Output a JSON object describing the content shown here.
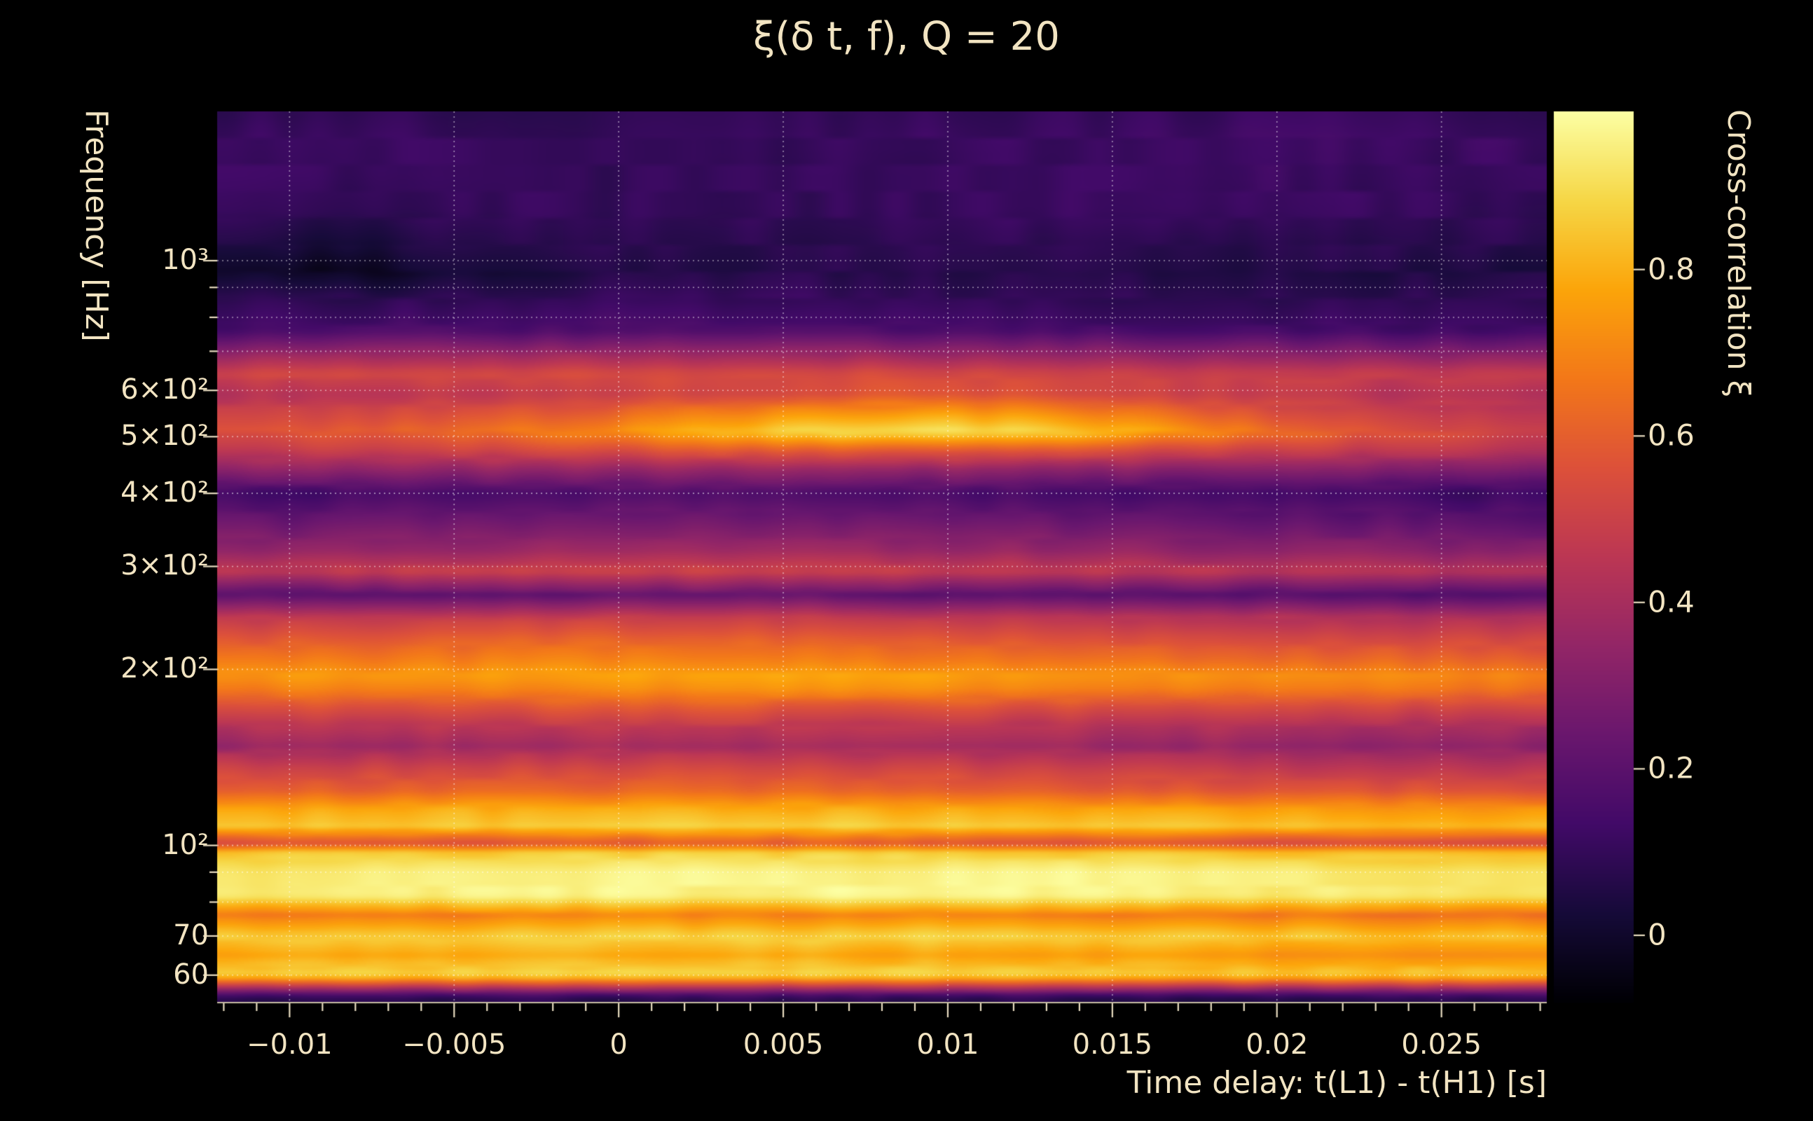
{
  "title": "ξ(δ t, f), Q = 20",
  "colors": {
    "background": "#000000",
    "text": "#f2e4c2",
    "tick": "#e8dcc0",
    "grid": "rgba(255,255,255,0.55)"
  },
  "chart_data": {
    "type": "heatmap",
    "title": "ξ(δ t, f), Q = 20",
    "xlabel": "Time delay: t(L1) - t(H1) [s]",
    "ylabel": "Frequency [Hz]",
    "colorbar_label": "Cross-correlation ξ",
    "x_range": [
      -0.0122,
      0.0282
    ],
    "y_range_hz": [
      54,
      1800
    ],
    "y_scale": "log",
    "color_range": [
      -0.08,
      0.99
    ],
    "x_ticks": [
      -0.01,
      -0.005,
      0,
      0.005,
      0.01,
      0.015,
      0.02,
      0.025
    ],
    "x_tick_labels": [
      "−0.01",
      "−0.005",
      "0",
      "0.005",
      "0.01",
      "0.015",
      "0.02",
      "0.025"
    ],
    "x_minor_tick_step": 0.001,
    "y_ticks_hz": [
      1000,
      600,
      500,
      400,
      300,
      200,
      100,
      70,
      60
    ],
    "y_tick_labels": [
      "10³",
      "6×10²",
      "5×10²",
      "4×10²",
      "3×10²",
      "2×10²",
      "10²",
      "70",
      "60"
    ],
    "y_minor_ticks_hz": [
      80,
      90,
      700,
      800,
      900
    ],
    "grid_lines_hz": [
      60,
      70,
      80,
      90,
      100,
      200,
      300,
      400,
      500,
      600,
      700,
      800,
      900,
      1000
    ],
    "grid_on": true,
    "legend_position": "colorbar-right",
    "colorbar_ticks": [
      0.8,
      0.6,
      0.4,
      0.2,
      0
    ],
    "colorbar_tick_labels": [
      "0.8",
      "0.6",
      "0.4",
      "0.2",
      "0"
    ],
    "colormap": "inferno",
    "colormap_stops": [
      [
        0.0,
        "#000004"
      ],
      [
        0.1,
        "#160b39"
      ],
      [
        0.2,
        "#420a68"
      ],
      [
        0.3,
        "#6a176e"
      ],
      [
        0.4,
        "#932667"
      ],
      [
        0.5,
        "#bc3754"
      ],
      [
        0.6,
        "#dd513a"
      ],
      [
        0.7,
        "#f37819"
      ],
      [
        0.8,
        "#fca50a"
      ],
      [
        0.9,
        "#f6d746"
      ],
      [
        1.0,
        "#fcffa4"
      ]
    ],
    "time_samples": [
      -0.0122,
      -0.0085,
      -0.0049,
      -0.0012,
      0.0025,
      0.0061,
      0.0098,
      0.0135,
      0.0171,
      0.0208,
      0.0245,
      0.0282
    ],
    "rows": [
      {
        "f": 55,
        "values": [
          0.07,
          0.07,
          0.08,
          0.08,
          0.08,
          0.08,
          0.08,
          0.08,
          0.07,
          0.07,
          0.07,
          0.07
        ]
      },
      {
        "f": 60,
        "values": [
          0.88,
          0.88,
          0.88,
          0.89,
          0.89,
          0.89,
          0.88,
          0.87,
          0.86,
          0.86,
          0.85,
          0.84
        ]
      },
      {
        "f": 65,
        "values": [
          0.77,
          0.77,
          0.78,
          0.78,
          0.78,
          0.78,
          0.77,
          0.76,
          0.75,
          0.74,
          0.73,
          0.72
        ]
      },
      {
        "f": 70,
        "values": [
          0.86,
          0.86,
          0.87,
          0.87,
          0.88,
          0.88,
          0.88,
          0.87,
          0.86,
          0.85,
          0.84,
          0.83
        ]
      },
      {
        "f": 76,
        "values": [
          0.67,
          0.68,
          0.69,
          0.7,
          0.7,
          0.7,
          0.7,
          0.69,
          0.68,
          0.67,
          0.66,
          0.64
        ]
      },
      {
        "f": 82,
        "values": [
          0.94,
          0.95,
          0.95,
          0.96,
          0.96,
          0.97,
          0.97,
          0.96,
          0.95,
          0.94,
          0.93,
          0.92
        ]
      },
      {
        "f": 90,
        "values": [
          0.93,
          0.94,
          0.95,
          0.95,
          0.96,
          0.96,
          0.96,
          0.96,
          0.95,
          0.94,
          0.93,
          0.92
        ]
      },
      {
        "f": 97,
        "values": [
          0.85,
          0.86,
          0.86,
          0.87,
          0.87,
          0.87,
          0.87,
          0.86,
          0.85,
          0.84,
          0.83,
          0.82
        ]
      },
      {
        "f": 101,
        "values": [
          0.54,
          0.55,
          0.56,
          0.57,
          0.58,
          0.58,
          0.57,
          0.56,
          0.55,
          0.54,
          0.52,
          0.51
        ]
      },
      {
        "f": 108,
        "values": [
          0.84,
          0.85,
          0.85,
          0.86,
          0.87,
          0.87,
          0.86,
          0.85,
          0.84,
          0.83,
          0.82,
          0.81
        ]
      },
      {
        "f": 115,
        "values": [
          0.78,
          0.79,
          0.8,
          0.8,
          0.8,
          0.8,
          0.79,
          0.78,
          0.77,
          0.76,
          0.75,
          0.74
        ]
      },
      {
        "f": 124,
        "values": [
          0.6,
          0.61,
          0.62,
          0.63,
          0.63,
          0.62,
          0.61,
          0.6,
          0.59,
          0.58,
          0.57,
          0.56
        ]
      },
      {
        "f": 135,
        "values": [
          0.5,
          0.51,
          0.52,
          0.53,
          0.53,
          0.52,
          0.51,
          0.5,
          0.48,
          0.47,
          0.46,
          0.45
        ]
      },
      {
        "f": 148,
        "values": [
          0.36,
          0.37,
          0.38,
          0.4,
          0.4,
          0.39,
          0.38,
          0.37,
          0.36,
          0.35,
          0.34,
          0.33
        ]
      },
      {
        "f": 160,
        "values": [
          0.44,
          0.45,
          0.46,
          0.47,
          0.47,
          0.46,
          0.45,
          0.44,
          0.43,
          0.42,
          0.41,
          0.4
        ]
      },
      {
        "f": 172,
        "values": [
          0.55,
          0.56,
          0.57,
          0.58,
          0.58,
          0.57,
          0.56,
          0.55,
          0.54,
          0.53,
          0.52,
          0.51
        ]
      },
      {
        "f": 185,
        "values": [
          0.68,
          0.69,
          0.7,
          0.71,
          0.72,
          0.72,
          0.71,
          0.7,
          0.69,
          0.67,
          0.66,
          0.65
        ]
      },
      {
        "f": 195,
        "values": [
          0.74,
          0.75,
          0.76,
          0.77,
          0.77,
          0.77,
          0.76,
          0.75,
          0.74,
          0.72,
          0.71,
          0.7
        ]
      },
      {
        "f": 208,
        "values": [
          0.66,
          0.67,
          0.68,
          0.69,
          0.69,
          0.68,
          0.67,
          0.66,
          0.64,
          0.63,
          0.62,
          0.61
        ]
      },
      {
        "f": 225,
        "values": [
          0.57,
          0.58,
          0.6,
          0.61,
          0.61,
          0.6,
          0.59,
          0.57,
          0.56,
          0.54,
          0.53,
          0.52
        ]
      },
      {
        "f": 245,
        "values": [
          0.46,
          0.47,
          0.48,
          0.49,
          0.49,
          0.48,
          0.47,
          0.46,
          0.44,
          0.43,
          0.42,
          0.41
        ]
      },
      {
        "f": 268,
        "values": [
          0.19,
          0.2,
          0.21,
          0.22,
          0.23,
          0.22,
          0.21,
          0.2,
          0.19,
          0.18,
          0.17,
          0.17
        ]
      },
      {
        "f": 295,
        "values": [
          0.47,
          0.48,
          0.49,
          0.5,
          0.51,
          0.5,
          0.49,
          0.48,
          0.46,
          0.45,
          0.44,
          0.43
        ]
      },
      {
        "f": 320,
        "values": [
          0.34,
          0.35,
          0.36,
          0.37,
          0.38,
          0.37,
          0.36,
          0.35,
          0.34,
          0.33,
          0.32,
          0.31
        ]
      },
      {
        "f": 355,
        "values": [
          0.24,
          0.25,
          0.26,
          0.27,
          0.28,
          0.27,
          0.26,
          0.25,
          0.24,
          0.23,
          0.22,
          0.21
        ]
      },
      {
        "f": 400,
        "values": [
          0.13,
          0.14,
          0.15,
          0.16,
          0.17,
          0.16,
          0.15,
          0.14,
          0.13,
          0.13,
          0.12,
          0.12
        ]
      },
      {
        "f": 440,
        "values": [
          0.33,
          0.34,
          0.35,
          0.36,
          0.37,
          0.36,
          0.35,
          0.34,
          0.33,
          0.32,
          0.31,
          0.3
        ]
      },
      {
        "f": 475,
        "values": [
          0.47,
          0.49,
          0.52,
          0.55,
          0.58,
          0.6,
          0.6,
          0.57,
          0.53,
          0.49,
          0.46,
          0.44
        ]
      },
      {
        "f": 510,
        "values": [
          0.55,
          0.58,
          0.63,
          0.7,
          0.8,
          0.9,
          0.92,
          0.86,
          0.74,
          0.62,
          0.55,
          0.5
        ]
      },
      {
        "f": 545,
        "values": [
          0.5,
          0.52,
          0.56,
          0.61,
          0.69,
          0.76,
          0.78,
          0.73,
          0.63,
          0.55,
          0.5,
          0.46
        ]
      },
      {
        "f": 590,
        "values": [
          0.44,
          0.45,
          0.47,
          0.5,
          0.53,
          0.56,
          0.57,
          0.54,
          0.5,
          0.46,
          0.43,
          0.41
        ]
      },
      {
        "f": 640,
        "values": [
          0.51,
          0.52,
          0.53,
          0.54,
          0.54,
          0.54,
          0.53,
          0.52,
          0.5,
          0.49,
          0.48,
          0.47
        ]
      },
      {
        "f": 685,
        "values": [
          0.37,
          0.38,
          0.39,
          0.4,
          0.4,
          0.39,
          0.38,
          0.37,
          0.36,
          0.35,
          0.34,
          0.33
        ]
      },
      {
        "f": 760,
        "values": [
          0.14,
          0.15,
          0.16,
          0.17,
          0.17,
          0.16,
          0.15,
          0.15,
          0.14,
          0.14,
          0.13,
          0.13
        ]
      },
      {
        "f": 850,
        "values": [
          0.09,
          0.09,
          0.1,
          0.11,
          0.11,
          0.11,
          0.1,
          0.1,
          0.1,
          0.09,
          0.09,
          0.09
        ]
      },
      {
        "f": 960,
        "values": [
          0.0,
          -0.03,
          0.02,
          0.05,
          0.06,
          0.07,
          0.07,
          0.07,
          0.06,
          0.06,
          0.05,
          0.05
        ]
      },
      {
        "f": 1080,
        "values": [
          0.05,
          0.04,
          0.06,
          0.08,
          0.08,
          0.08,
          0.09,
          0.09,
          0.08,
          0.08,
          0.08,
          0.08
        ]
      },
      {
        "f": 1220,
        "values": [
          0.1,
          0.09,
          0.1,
          0.1,
          0.1,
          0.1,
          0.11,
          0.12,
          0.12,
          0.11,
          0.1,
          0.1
        ]
      },
      {
        "f": 1400,
        "values": [
          0.12,
          0.11,
          0.11,
          0.1,
          0.1,
          0.1,
          0.11,
          0.12,
          0.13,
          0.12,
          0.11,
          0.11
        ]
      },
      {
        "f": 1600,
        "values": [
          0.13,
          0.12,
          0.11,
          0.1,
          0.1,
          0.11,
          0.12,
          0.12,
          0.13,
          0.13,
          0.12,
          0.12
        ]
      },
      {
        "f": 1780,
        "values": [
          0.1,
          0.1,
          0.09,
          0.09,
          0.09,
          0.1,
          0.1,
          0.11,
          0.11,
          0.11,
          0.1,
          0.1
        ]
      }
    ]
  }
}
